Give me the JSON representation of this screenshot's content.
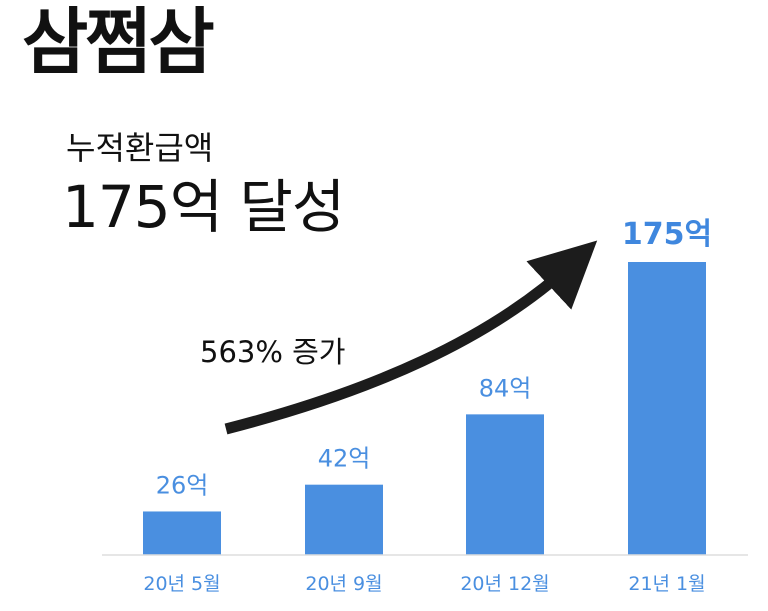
{
  "logo": "삼쩜삼",
  "heading": {
    "subtitle": "누적환급액",
    "headline": "175억 달성"
  },
  "annotation": {
    "text": "563% 증가"
  },
  "colors": {
    "bar": "#4a8fe0",
    "label": "#4a8fe0",
    "last_label": "#3f87de",
    "baseline": "#dddddd",
    "arrow": "#1c1c1c",
    "text": "#111111"
  },
  "chart_data": {
    "type": "bar",
    "categories": [
      "20년 5월",
      "20년 9월",
      "20년 12월",
      "21년 1월"
    ],
    "values": [
      26,
      42,
      84,
      175
    ],
    "data_labels": [
      "26억",
      "42억",
      "84억",
      "175억"
    ],
    "unit": "억",
    "ylim": [
      0,
      175
    ],
    "grid": false,
    "legend": "none"
  }
}
